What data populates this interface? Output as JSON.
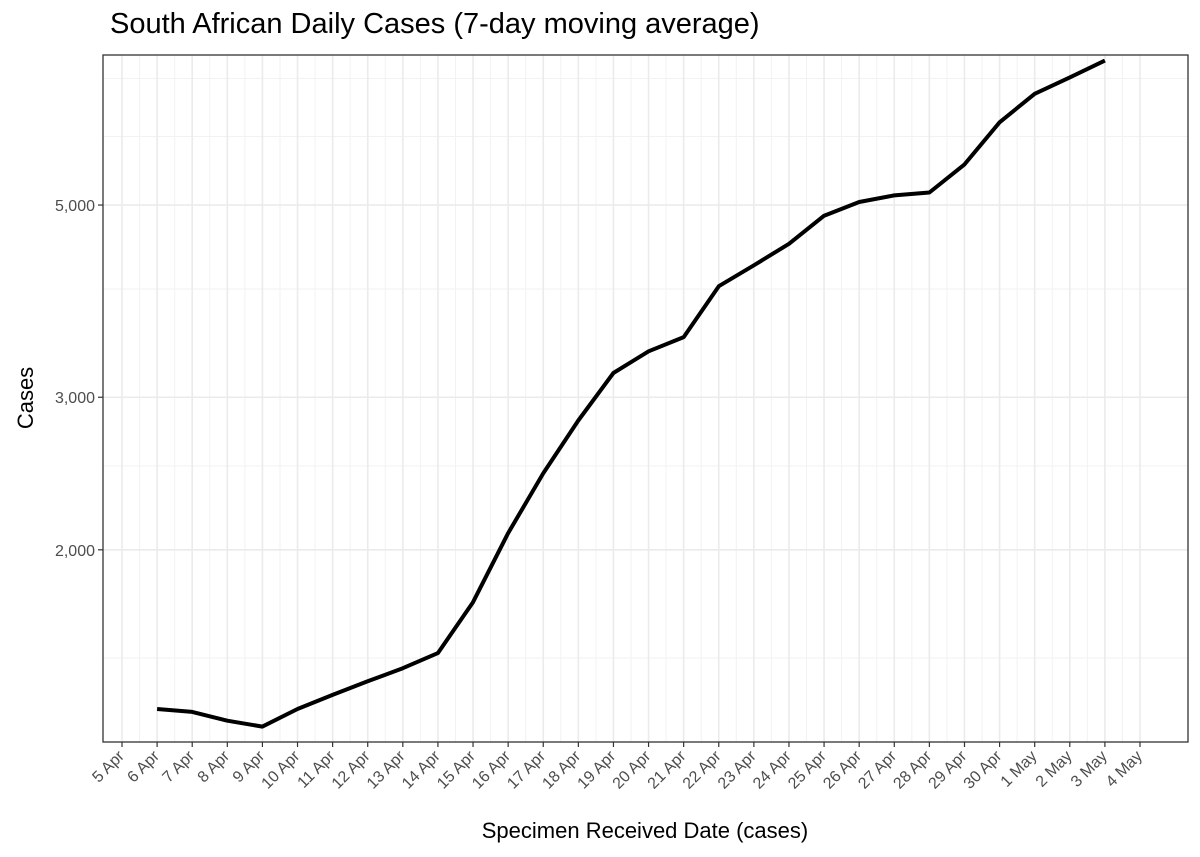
{
  "chart_data": {
    "type": "line",
    "title": "South African Daily Cases (7-day moving average)",
    "xlabel": "Specimen Received Date (cases)",
    "ylabel": "Cases",
    "y_scale": "log",
    "y_ticks": [
      2000,
      3000,
      5000
    ],
    "y_tick_labels": [
      "2,000",
      "3,000",
      "5,000"
    ],
    "ylim": [
      1200,
      7450
    ],
    "x_tick_labels": [
      "5 Apr",
      "6 Apr",
      "7 Apr",
      "8 Apr",
      "9 Apr",
      "10 Apr",
      "11 Apr",
      "12 Apr",
      "13 Apr",
      "14 Apr",
      "15 Apr",
      "16 Apr",
      "17 Apr",
      "18 Apr",
      "19 Apr",
      "20 Apr",
      "21 Apr",
      "22 Apr",
      "23 Apr",
      "24 Apr",
      "25 Apr",
      "26 Apr",
      "27 Apr",
      "28 Apr",
      "29 Apr",
      "30 Apr",
      "1 May",
      "2 May",
      "3 May",
      "4 May"
    ],
    "grid": true,
    "line_color": "#000000",
    "series": [
      {
        "x": [
          "6 Apr",
          "7 Apr",
          "8 Apr",
          "9 Apr",
          "10 Apr",
          "11 Apr",
          "12 Apr",
          "13 Apr",
          "14 Apr",
          "15 Apr",
          "16 Apr",
          "17 Apr",
          "18 Apr",
          "19 Apr",
          "20 Apr",
          "21 Apr",
          "22 Apr",
          "23 Apr",
          "24 Apr",
          "25 Apr",
          "26 Apr",
          "27 Apr",
          "28 Apr",
          "29 Apr",
          "30 Apr",
          "1 May",
          "2 May",
          "3 May"
        ],
        "values": [
          1310,
          1300,
          1270,
          1250,
          1310,
          1360,
          1410,
          1460,
          1520,
          1740,
          2090,
          2450,
          2820,
          3200,
          3390,
          3520,
          4030,
          4260,
          4510,
          4860,
          5040,
          5130,
          5170,
          5570,
          6230,
          6720,
          7020,
          7340
        ]
      }
    ]
  }
}
